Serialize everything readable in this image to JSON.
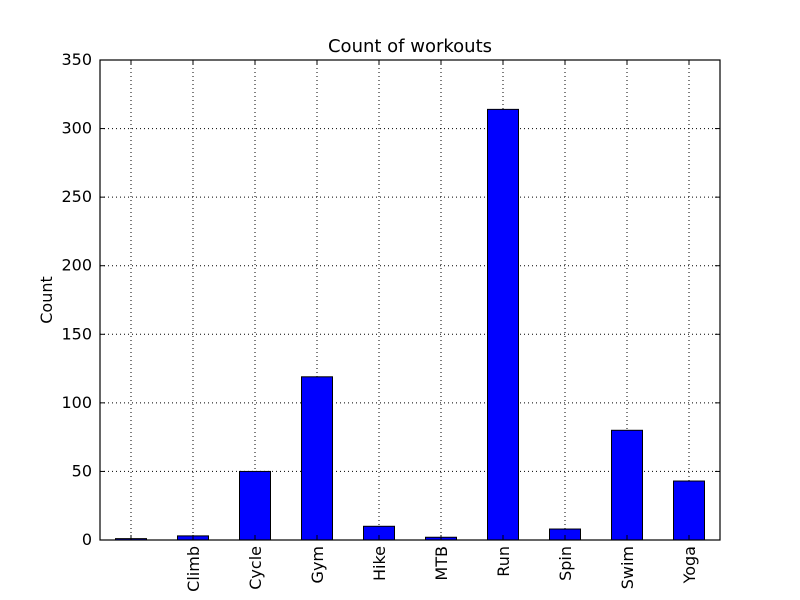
{
  "chart_data": {
    "type": "bar",
    "title": "Count of workouts",
    "xlabel": "",
    "ylabel": "Count",
    "categories": [
      "",
      "Climb",
      "Cycle",
      "Gym",
      "Hike",
      "MTB",
      "Run",
      "Spin",
      "Swim",
      "Yoga"
    ],
    "values": [
      1,
      3,
      50,
      119,
      10,
      2,
      314,
      8,
      80,
      43
    ],
    "ylim": [
      0,
      350
    ],
    "yticks": [
      0,
      50,
      100,
      150,
      200,
      250,
      300,
      350
    ],
    "grid": true,
    "bar_color": "#0000ff",
    "x_tick_rotation": "vertical",
    "legend": null
  }
}
